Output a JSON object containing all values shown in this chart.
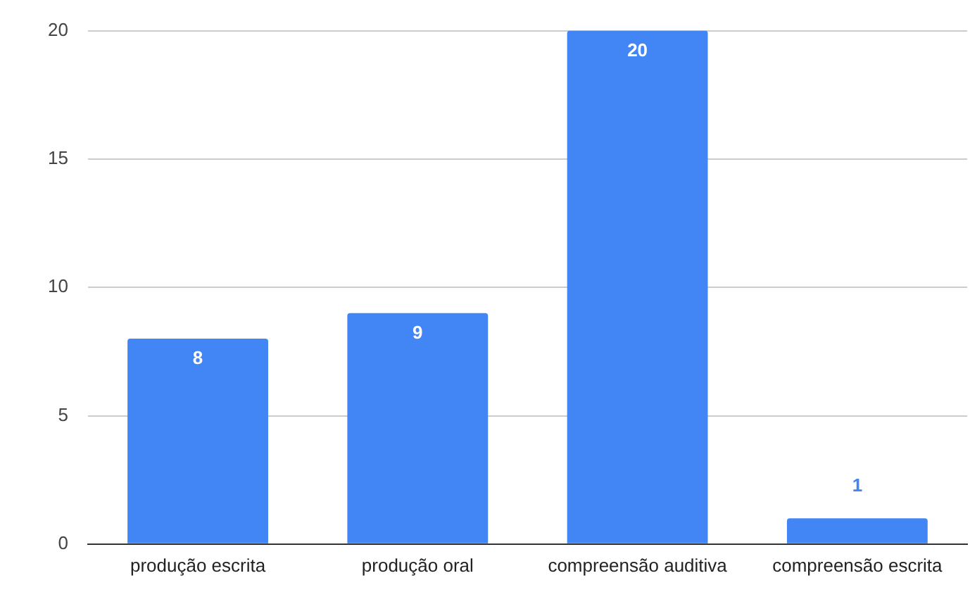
{
  "chart_data": {
    "type": "bar",
    "categories": [
      "produção escrita",
      "produção oral",
      "compreensão auditiva",
      "compreensão escrita"
    ],
    "values": [
      8,
      9,
      20,
      1
    ],
    "color": "#4285f4",
    "ylim": [
      0,
      20
    ],
    "yticks": [
      0,
      5,
      10,
      15,
      20
    ],
    "grid": "y",
    "data_labels": true,
    "legend": false
  }
}
